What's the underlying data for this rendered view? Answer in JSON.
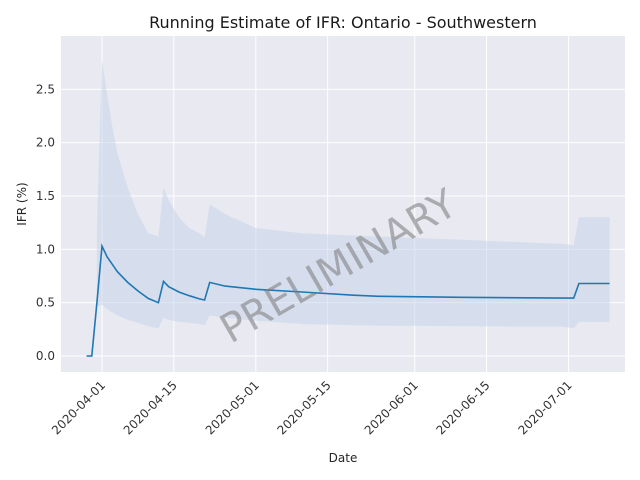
{
  "chart_data": {
    "type": "line",
    "title": "Running Estimate of IFR: Ontario - Southwestern",
    "xlabel": "Date",
    "ylabel": "IFR (%)",
    "watermark": "PRELIMINARY",
    "x_ticks": [
      "2020-04-01",
      "2020-04-15",
      "2020-05-01",
      "2020-05-15",
      "2020-06-01",
      "2020-06-15",
      "2020-07-01"
    ],
    "y_ticks": [
      "0.0",
      "0.5",
      "1.0",
      "1.5",
      "2.0",
      "2.5"
    ],
    "xlim": [
      "2020-03-24",
      "2020-07-12"
    ],
    "ylim": [
      -0.15,
      3.0
    ],
    "grid": true,
    "colors": {
      "background": "#e8e9f1",
      "grid": "#ffffff",
      "line": "#1f77b4",
      "band": "#c6d6ea"
    },
    "series": [
      {
        "x": [
          "2020-03-29",
          "2020-03-30",
          "2020-03-31",
          "2020-04-01",
          "2020-04-02",
          "2020-04-03",
          "2020-04-04",
          "2020-04-06",
          "2020-04-08",
          "2020-04-10",
          "2020-04-12",
          "2020-04-13",
          "2020-04-14",
          "2020-04-16",
          "2020-04-18",
          "2020-04-20",
          "2020-04-21",
          "2020-04-22",
          "2020-04-25",
          "2020-05-01",
          "2020-05-10",
          "2020-05-20",
          "2020-05-25",
          "2020-06-10",
          "2020-06-30",
          "2020-07-02",
          "2020-07-03",
          "2020-07-09"
        ],
        "values": [
          0.0,
          0.0,
          0.5,
          1.03,
          0.93,
          0.86,
          0.79,
          0.69,
          0.61,
          0.54,
          0.5,
          0.7,
          0.65,
          0.6,
          0.565,
          0.535,
          0.525,
          0.69,
          0.655,
          0.625,
          0.6,
          0.57,
          0.56,
          0.55,
          0.543,
          0.543,
          0.68,
          0.68
        ],
        "lower": [
          null,
          null,
          0.46,
          0.48,
          0.44,
          0.41,
          0.38,
          0.34,
          0.31,
          0.28,
          0.26,
          0.36,
          0.34,
          0.32,
          0.31,
          0.3,
          0.29,
          0.38,
          0.36,
          0.33,
          0.3,
          0.29,
          0.285,
          0.28,
          0.275,
          0.26,
          0.32,
          0.32
        ],
        "upper": [
          null,
          null,
          1.2,
          2.78,
          2.45,
          2.15,
          1.9,
          1.58,
          1.33,
          1.15,
          1.12,
          1.58,
          1.46,
          1.3,
          1.2,
          1.15,
          1.11,
          1.42,
          1.33,
          1.2,
          1.15,
          1.13,
          1.12,
          1.09,
          1.05,
          1.04,
          1.3,
          1.3
        ]
      }
    ]
  }
}
